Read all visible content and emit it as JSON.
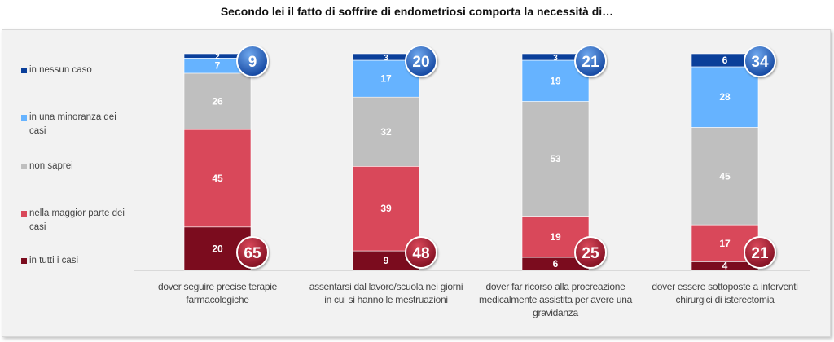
{
  "chart_data": {
    "type": "bar",
    "stacked": true,
    "orientation": "vertical",
    "title": "Secondo lei il fatto di soffrire di endometriosi comporta la necessità di…",
    "xlabel": "",
    "ylabel": "",
    "ylim": [
      0,
      100
    ],
    "grid": false,
    "legend_position": "left",
    "categories": [
      "dover seguire precise terapie farmacologiche",
      "assentarsi dal lavoro/scuola nei giorni in cui si hanno le mestruazioni",
      "dover far ricorso alla procreazione medicalmente assistita per avere una gravidanza",
      "dover essere sottoposte a interventi chirurgici di isterectomia"
    ],
    "category_lines": [
      [
        "dover seguire precise terapie",
        "farmacologiche"
      ],
      [
        "assentarsi dal lavoro/scuola nei giorni",
        "in cui si hanno le mestruazioni"
      ],
      [
        "dover far ricorso alla procreazione",
        "medicalmente assistita per avere una",
        "gravidanza"
      ],
      [
        "dover essere sottoposte a interventi",
        "chirurgici di isterectomia"
      ]
    ],
    "series": [
      {
        "name": "in tutti i casi",
        "color": "#7b0c1e",
        "values": [
          20,
          9,
          6,
          4
        ]
      },
      {
        "name": "nella maggior parte dei casi",
        "color": "#d9485a",
        "values": [
          45,
          39,
          19,
          17
        ]
      },
      {
        "name": "non saprei",
        "color": "#bfbfbf",
        "values": [
          26,
          32,
          53,
          45
        ]
      },
      {
        "name": "in una minoranza dei casi",
        "color": "#66b3ff",
        "values": [
          7,
          17,
          19,
          28
        ]
      },
      {
        "name": "in nessun caso",
        "color": "#0a3f9a",
        "values": [
          2,
          3,
          3,
          6
        ]
      }
    ],
    "legend_order": [
      "in nessun caso",
      "in una minoranza dei casi",
      "non saprei",
      "nella maggior parte dei casi",
      "in tutti i casi"
    ],
    "annotations": {
      "top_totals": {
        "label": "in nessun caso + in una minoranza dei casi",
        "color": "#1f5fbf",
        "values": [
          9,
          20,
          21,
          34
        ]
      },
      "bottom_totals": {
        "label": "in tutti i casi + nella maggior parte dei casi",
        "color": "#a51c30",
        "values": [
          65,
          48,
          25,
          21
        ]
      }
    }
  }
}
